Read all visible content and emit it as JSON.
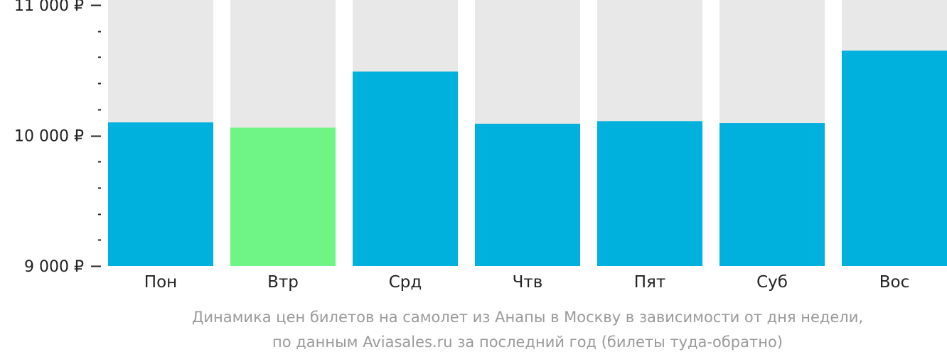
{
  "chart_data": {
    "type": "bar",
    "categories": [
      "Пон",
      "Втр",
      "Срд",
      "Чтв",
      "Пят",
      "Суб",
      "Вос"
    ],
    "values": [
      10100,
      10060,
      10490,
      10090,
      10110,
      10095,
      10650
    ],
    "ylim": [
      9000,
      11000
    ],
    "y_ticks": [
      {
        "value": 9000,
        "label": "9 000 ₽"
      },
      {
        "value": 10000,
        "label": "10 000 ₽"
      },
      {
        "value": 11000,
        "label": "11 000 ₽"
      }
    ],
    "y_minor_step": 200,
    "highlight_index": 1,
    "colors": {
      "bar": "#00b0dd",
      "highlight": "#6ef586",
      "track": "#e8e8e8",
      "axis": "#222222",
      "caption": "#9a9a9a"
    },
    "caption_lines": [
      "Динамика цен билетов на самолет из Анапы в Москву в зависимости от дня недели,",
      "по данным Aviasales.ru за последний год (билеты туда-обратно)"
    ],
    "grid": false,
    "legend": "none"
  }
}
